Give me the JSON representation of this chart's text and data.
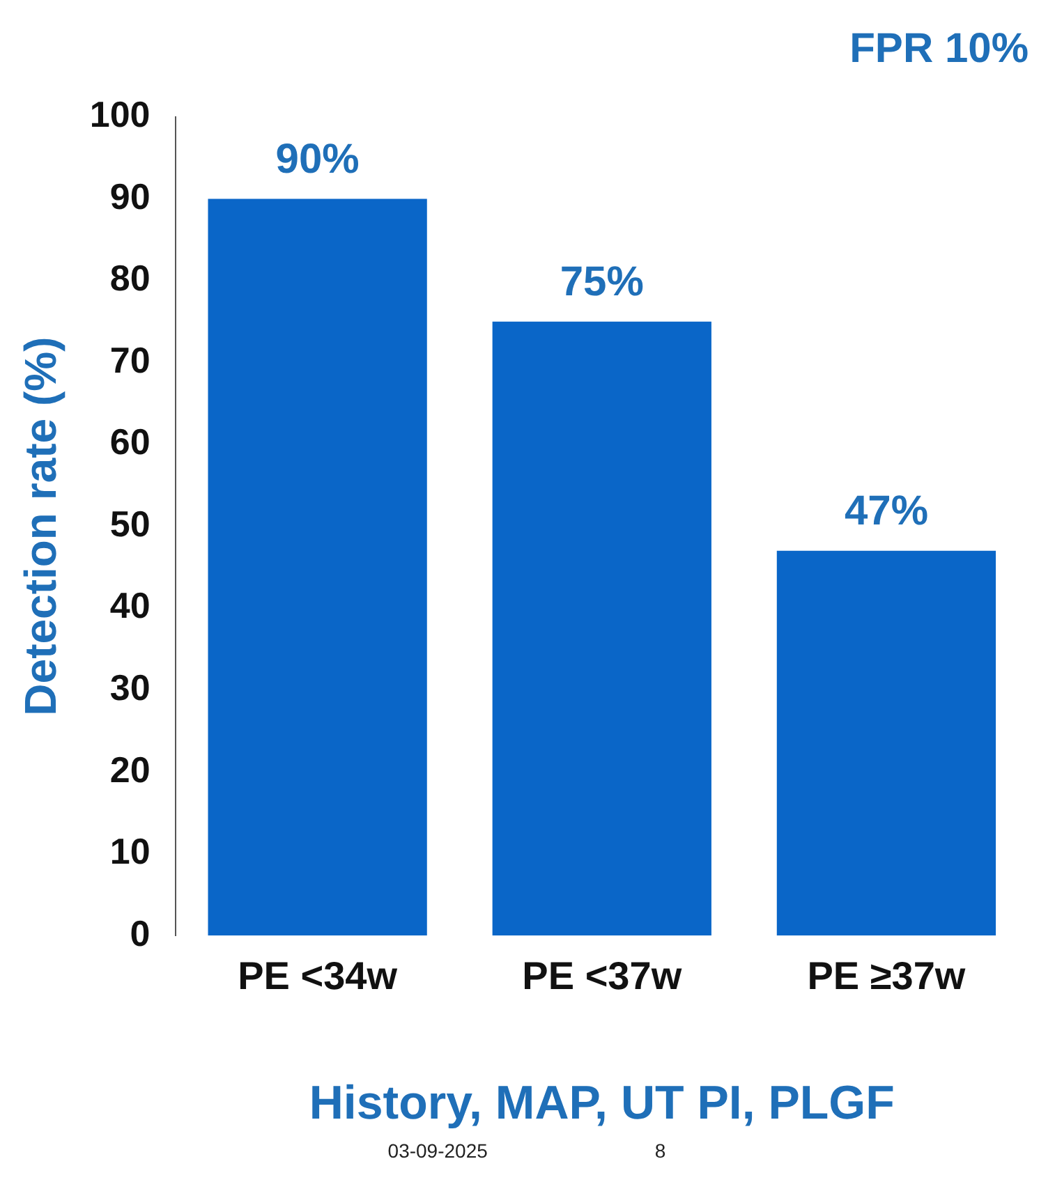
{
  "chart_data": {
    "type": "bar",
    "title": "FPR 10%",
    "xlabel": "History, MAP, UT PI, PLGF",
    "ylabel": "Detection rate (%)",
    "categories": [
      "PE <34w",
      "PE <37w",
      "PE ≥37w"
    ],
    "values": [
      90,
      75,
      47
    ],
    "color": "#0a66c8",
    "value_labels": [
      "90%",
      "75%",
      "47%"
    ],
    "ylim": [
      0,
      100
    ],
    "yticks": [
      0,
      10,
      20,
      30,
      40,
      50,
      60,
      70,
      80,
      90,
      100
    ],
    "grid": false,
    "annotations": [
      "03-09-2025",
      "8"
    ]
  }
}
